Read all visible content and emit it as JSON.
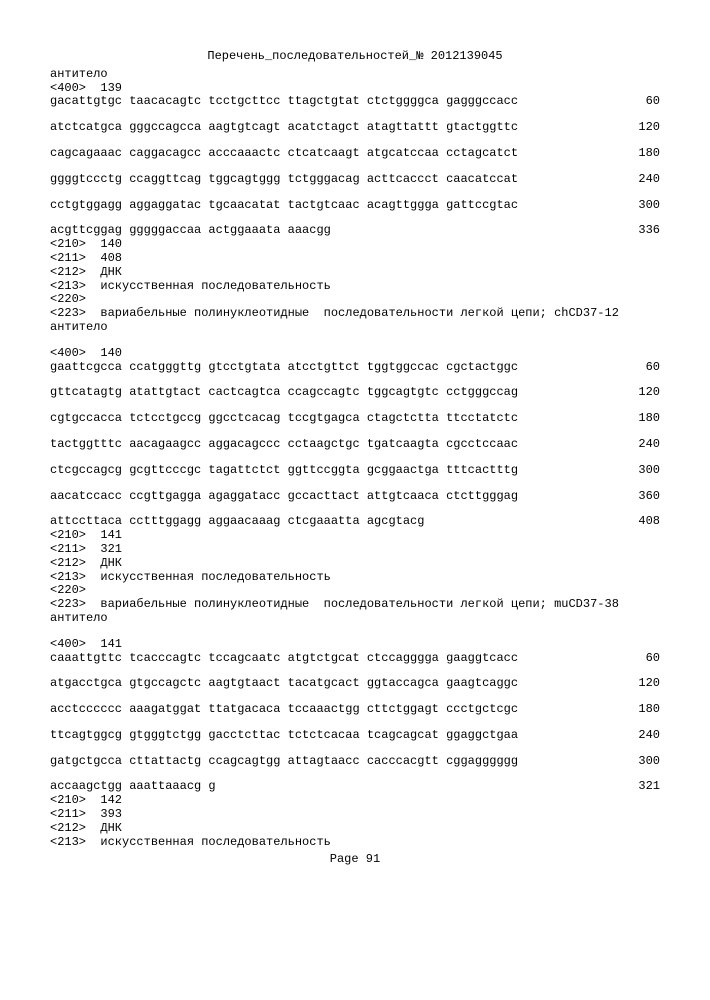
{
  "title": "Перечень_последовательностей_№ 2012139045",
  "antibody_label": "антитело",
  "seq139": {
    "header": "<400>  139",
    "lines": [
      {
        "s": "gacattgtgc taacacagtc tcctgcttcc ttagctgtat ctctggggca gagggccacc",
        "p": "60"
      },
      {
        "s": "atctcatgca gggccagcca aagtgtcagt acatctagct atagttattt gtactggttc",
        "p": "120"
      },
      {
        "s": "cagcagaaac caggacagcc acccaaactc ctcatcaagt atgcatccaa cctagcatct",
        "p": "180"
      },
      {
        "s": "ggggtccctg ccaggttcag tggcagtggg tctgggacag acttcaccct caacatccat",
        "p": "240"
      },
      {
        "s": "cctgtggagg aggaggatac tgcaacatat tactgtcaac acagttggga gattccgtac",
        "p": "300"
      },
      {
        "s": "acgttcggag gggggaccaa actggaaata aaacgg",
        "p": "336"
      }
    ]
  },
  "seq140": {
    "h210": "<210>  140",
    "h211": "<211>  408",
    "h212": "<212>  ДНК",
    "h213": "<213>  искусственная последовательность",
    "h220": "<220>",
    "h223": "<223>  вариабельные полинуклеотидные  последовательности легкой цепи; chCD37-12",
    "h400": "<400>  140",
    "lines": [
      {
        "s": "gaattcgcca ccatgggttg gtcctgtata atcctgttct tggtggccac cgctactggc",
        "p": "60"
      },
      {
        "s": "gttcatagtg atattgtact cactcagtca ccagccagtc tggcagtgtc cctgggccag",
        "p": "120"
      },
      {
        "s": "cgtgccacca tctcctgccg ggcctcacag tccgtgagca ctagctctta ttcctatctc",
        "p": "180"
      },
      {
        "s": "tactggtttc aacagaagcc aggacagccc cctaagctgc tgatcaagta cgcctccaac",
        "p": "240"
      },
      {
        "s": "ctcgccagcg gcgttcccgc tagattctct ggttccggta gcggaactga tttcactttg",
        "p": "300"
      },
      {
        "s": "aacatccacc ccgttgagga agaggatacc gccacttact attgtcaaca ctcttgggag",
        "p": "360"
      },
      {
        "s": "attccttaca cctttggagg aggaacaaag ctcgaaatta agcgtacg",
        "p": "408"
      }
    ]
  },
  "seq141": {
    "h210": "<210>  141",
    "h211": "<211>  321",
    "h212": "<212>  ДНК",
    "h213": "<213>  искусственная последовательность",
    "h220": "<220>",
    "h223": "<223>  вариабельные полинуклеотидные  последовательности легкой цепи; muCD37-38",
    "h400": "<400>  141",
    "lines": [
      {
        "s": "caaattgttc tcacccagtc tccagcaatc atgtctgcat ctccagggga gaaggtcacc",
        "p": "60"
      },
      {
        "s": "atgacctgca gtgccagctc aagtgtaact tacatgcact ggtaccagca gaagtcaggc",
        "p": "120"
      },
      {
        "s": "acctcccccc aaagatggat ttatgacaca tccaaactgg cttctggagt ccctgctcgc",
        "p": "180"
      },
      {
        "s": "ttcagtggcg gtgggtctgg gacctcttac tctctcacaa tcagcagcat ggaggctgaa",
        "p": "240"
      },
      {
        "s": "gatgctgcca cttattactg ccagcagtgg attagtaacc cacccacgtt cggagggggg",
        "p": "300"
      },
      {
        "s": "accaagctgg aaattaaacg g",
        "p": "321"
      }
    ]
  },
  "seq142": {
    "h210": "<210>  142",
    "h211": "<211>  393",
    "h212": "<212>  ДНК",
    "h213": "<213>  искусственная последовательность"
  },
  "page_footer": "Page 91"
}
